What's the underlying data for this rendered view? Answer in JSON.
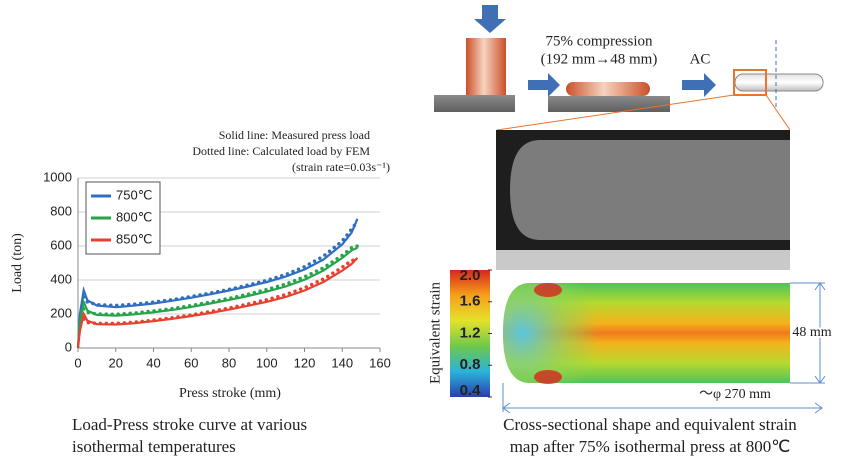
{
  "chart_data": {
    "type": "line",
    "x_label": "Press stroke (mm)",
    "y_label": "Load (ton)",
    "annotations": [
      "Solid line: Measured press load",
      "Dotted line: Calculated load by FEM",
      "(strain rate=0.03s⁻¹)"
    ],
    "caption": [
      "Load-Press stroke curve at various",
      "isothermal temperatures"
    ],
    "x": [
      0,
      1,
      3,
      5,
      10,
      20,
      30,
      40,
      50,
      60,
      70,
      80,
      90,
      100,
      110,
      120,
      130,
      140,
      145,
      148
    ],
    "xlim": [
      0,
      160
    ],
    "xticks": [
      0,
      20,
      40,
      60,
      80,
      100,
      120,
      140,
      160
    ],
    "ylim": [
      0,
      1000
    ],
    "yticks": [
      0,
      200,
      400,
      600,
      800,
      1000
    ],
    "grid": true,
    "legend": "upper left",
    "series": [
      {
        "name": "750℃",
        "color": "#2f6fc1",
        "values": [
          0,
          200,
          340,
          280,
          250,
          240,
          250,
          262,
          278,
          296,
          316,
          338,
          362,
          388,
          420,
          462,
          520,
          610,
          680,
          760
        ],
        "calculated": [
          null,
          null,
          300,
          270,
          255,
          250,
          258,
          270,
          285,
          303,
          323,
          345,
          370,
          398,
          432,
          478,
          540,
          630,
          700,
          745
        ]
      },
      {
        "name": "800℃",
        "color": "#27a34a",
        "values": [
          0,
          150,
          270,
          220,
          195,
          190,
          198,
          210,
          224,
          242,
          262,
          283,
          306,
          332,
          362,
          402,
          455,
          530,
          575,
          590
        ],
        "calculated": [
          null,
          null,
          230,
          210,
          200,
          198,
          206,
          218,
          232,
          250,
          270,
          292,
          316,
          344,
          376,
          418,
          472,
          545,
          590,
          600
        ]
      },
      {
        "name": "850℃",
        "color": "#e8402e",
        "values": [
          0,
          100,
          200,
          160,
          140,
          138,
          146,
          158,
          172,
          188,
          206,
          226,
          248,
          272,
          300,
          338,
          388,
          455,
          495,
          530
        ],
        "calculated": [
          null,
          null,
          170,
          150,
          145,
          145,
          152,
          164,
          178,
          195,
          214,
          235,
          258,
          284,
          314,
          354,
          406,
          475,
          515,
          520
        ]
      }
    ]
  },
  "diagram": {
    "compression": "75% compression",
    "reduction": "(192 mm→48 mm)",
    "cooling": "AC",
    "colorbar_label": "Equivalent strain",
    "clim": [
      0.4,
      2.0
    ],
    "colorbar_ticks": [
      {
        "value": 2.0,
        "label": "2.0"
      },
      {
        "value": 1.6,
        "label": "1.6"
      },
      {
        "value": 1.2,
        "label": "1.2"
      },
      {
        "value": 0.8,
        "label": "0.8"
      },
      {
        "value": 0.4,
        "label": "0.4"
      }
    ],
    "height_label": "48 mm",
    "diameter_label": "～φ 270 mm",
    "caption": [
      "Cross-sectional shape and equivalent strain",
      "map after 75% isothermal press at 800℃"
    ]
  }
}
